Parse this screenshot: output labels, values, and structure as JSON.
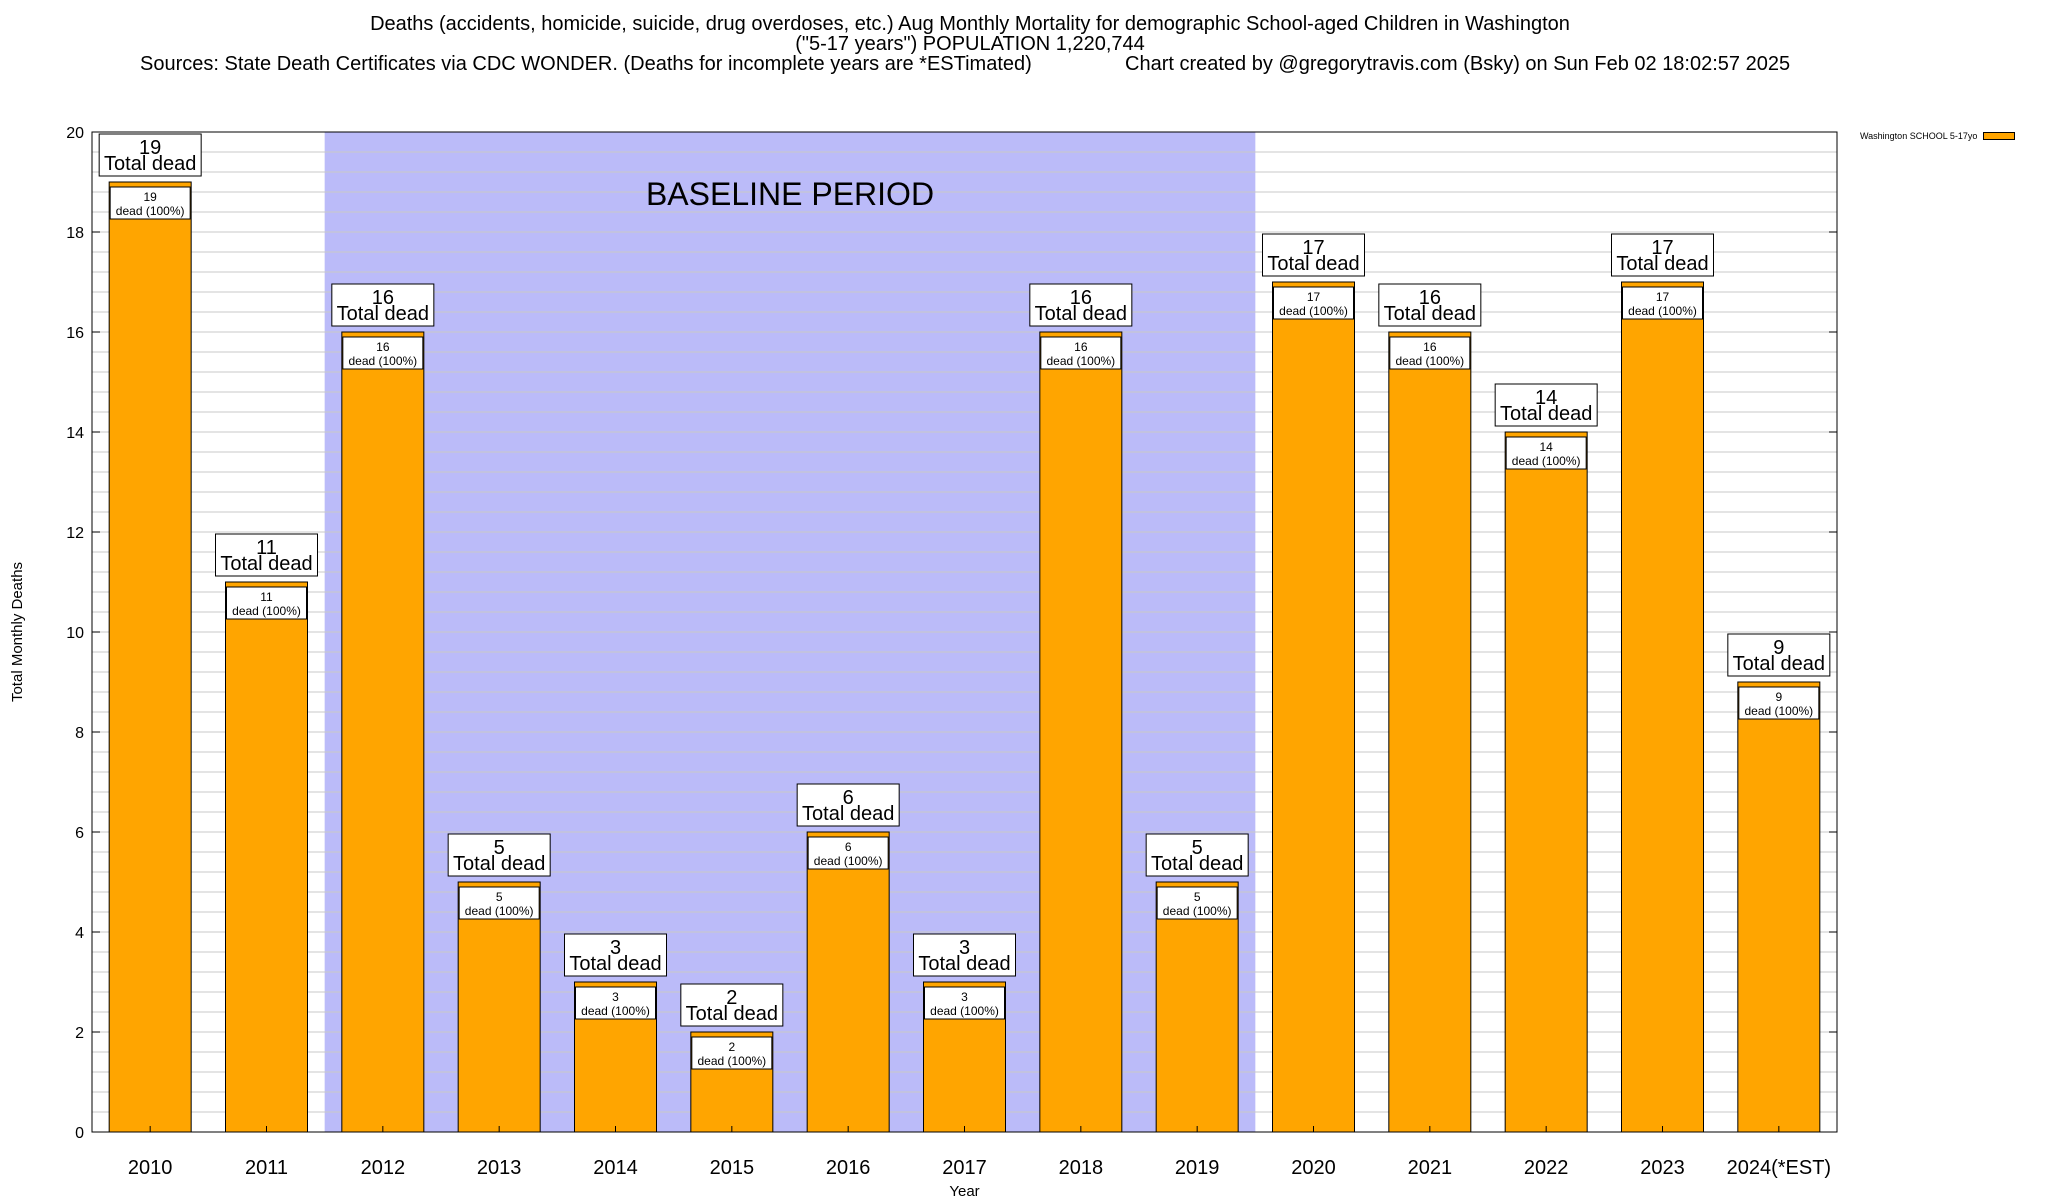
{
  "title": {
    "line1": "Deaths (accidents, homicide, suicide, drug overdoses, etc.) Aug Monthly Mortality for demographic School-aged Children in Washington",
    "line2": "(\"5-17 years\") POPULATION 1,220,744",
    "sources": "Sources: State Death Certificates via CDC WONDER. (Deaths for incomplete years are *ESTimated)",
    "credit": "Chart created by @gregorytravis.com (Bsky) on Sun Feb 02 18:02:57 2025"
  },
  "legend": {
    "label": "Washington SCHOOL 5-17yo",
    "color": "#ffa500"
  },
  "colors": {
    "bar": "#ffa500",
    "baseline": "#bbbbf9",
    "grid": "#c8c8c8"
  },
  "chart_data": {
    "type": "bar",
    "categories": [
      "2010",
      "2011",
      "2012",
      "2013",
      "2014",
      "2015",
      "2016",
      "2017",
      "2018",
      "2019",
      "2020",
      "2021",
      "2022",
      "2023",
      "2024(*EST)"
    ],
    "values": [
      19,
      11,
      16,
      5,
      3,
      2,
      6,
      3,
      16,
      5,
      17,
      16,
      14,
      17,
      9
    ],
    "top_label_suffix": "Total dead",
    "inner_label_suffix": "dead (100%)",
    "xlabel": "Year",
    "ylabel": "Total Monthly Deaths",
    "ylim": [
      0,
      20
    ],
    "yticks": [
      0,
      2,
      4,
      6,
      8,
      10,
      12,
      14,
      16,
      18,
      20
    ],
    "baseline": {
      "label": "BASELINE PERIOD",
      "from": "2012",
      "to": "2019"
    },
    "grid": true,
    "legend_position": "top-right"
  }
}
